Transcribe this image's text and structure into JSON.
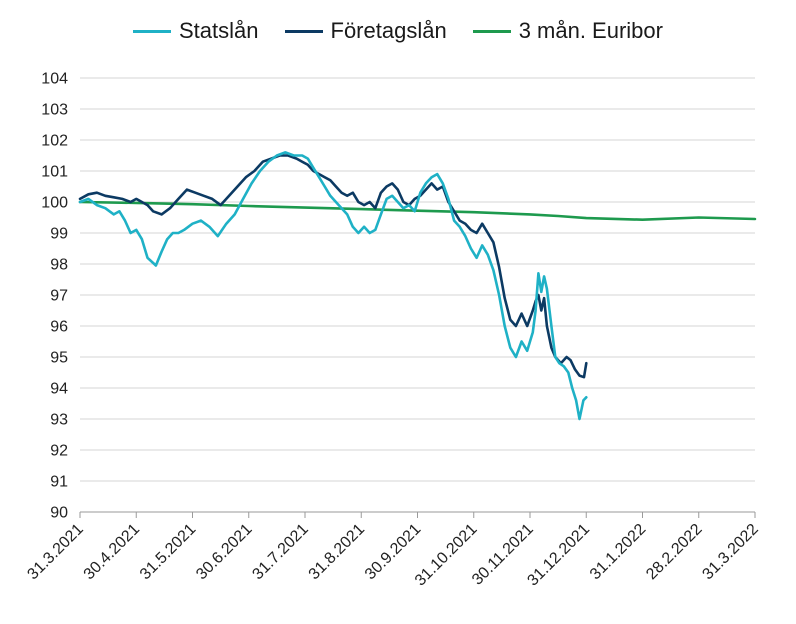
{
  "chart_data": {
    "type": "line",
    "x": [
      "31.3.2021",
      "30.4.2021",
      "31.5.2021",
      "30.6.2021",
      "31.7.2021",
      "31.8.2021",
      "30.9.2021",
      "31.10.2021",
      "30.11.2021",
      "31.12.2021",
      "31.1.2022",
      "28.2.2022",
      "31.3.2022"
    ],
    "ylim": [
      90,
      104
    ],
    "yticks": [
      "90",
      "91",
      "92",
      "93",
      "94",
      "95",
      "96",
      "97",
      "98",
      "99",
      "100",
      "101",
      "102",
      "103",
      "104"
    ],
    "grid": true,
    "legend": "top-center",
    "series": [
      {
        "name": "Statslån",
        "color": "#1fb1c6",
        "points": [
          [
            0,
            100.0
          ],
          [
            0.15,
            100.1
          ],
          [
            0.3,
            99.9
          ],
          [
            0.45,
            99.8
          ],
          [
            0.6,
            99.6
          ],
          [
            0.7,
            99.7
          ],
          [
            0.8,
            99.4
          ],
          [
            0.9,
            99.0
          ],
          [
            1.0,
            99.1
          ],
          [
            1.1,
            98.8
          ],
          [
            1.2,
            98.2
          ],
          [
            1.35,
            97.95
          ],
          [
            1.45,
            98.4
          ],
          [
            1.55,
            98.8
          ],
          [
            1.65,
            99.0
          ],
          [
            1.75,
            99.0
          ],
          [
            1.85,
            99.1
          ],
          [
            2.0,
            99.3
          ],
          [
            2.15,
            99.4
          ],
          [
            2.3,
            99.2
          ],
          [
            2.45,
            98.9
          ],
          [
            2.6,
            99.3
          ],
          [
            2.75,
            99.6
          ],
          [
            2.9,
            100.1
          ],
          [
            3.05,
            100.6
          ],
          [
            3.2,
            101.0
          ],
          [
            3.35,
            101.3
          ],
          [
            3.5,
            101.5
          ],
          [
            3.65,
            101.6
          ],
          [
            3.8,
            101.5
          ],
          [
            3.95,
            101.5
          ],
          [
            4.05,
            101.4
          ],
          [
            4.15,
            101.1
          ],
          [
            4.25,
            100.8
          ],
          [
            4.35,
            100.5
          ],
          [
            4.45,
            100.2
          ],
          [
            4.55,
            100.0
          ],
          [
            4.65,
            99.8
          ],
          [
            4.75,
            99.6
          ],
          [
            4.85,
            99.2
          ],
          [
            4.95,
            99.0
          ],
          [
            5.05,
            99.2
          ],
          [
            5.15,
            99.0
          ],
          [
            5.25,
            99.1
          ],
          [
            5.35,
            99.6
          ],
          [
            5.45,
            100.1
          ],
          [
            5.55,
            100.2
          ],
          [
            5.65,
            100.0
          ],
          [
            5.75,
            99.8
          ],
          [
            5.85,
            99.9
          ],
          [
            5.95,
            99.7
          ],
          [
            6.05,
            100.3
          ],
          [
            6.15,
            100.6
          ],
          [
            6.25,
            100.8
          ],
          [
            6.35,
            100.9
          ],
          [
            6.45,
            100.6
          ],
          [
            6.55,
            100.1
          ],
          [
            6.65,
            99.4
          ],
          [
            6.75,
            99.2
          ],
          [
            6.85,
            98.9
          ],
          [
            6.95,
            98.5
          ],
          [
            7.05,
            98.2
          ],
          [
            7.15,
            98.6
          ],
          [
            7.25,
            98.3
          ],
          [
            7.35,
            97.8
          ],
          [
            7.45,
            97.0
          ],
          [
            7.55,
            96.0
          ],
          [
            7.65,
            95.3
          ],
          [
            7.75,
            95.0
          ],
          [
            7.85,
            95.5
          ],
          [
            7.95,
            95.2
          ],
          [
            8.05,
            95.8
          ],
          [
            8.1,
            96.5
          ],
          [
            8.15,
            97.7
          ],
          [
            8.2,
            97.1
          ],
          [
            8.25,
            97.6
          ],
          [
            8.3,
            97.2
          ],
          [
            8.38,
            96.0
          ],
          [
            8.45,
            95.0
          ],
          [
            8.52,
            94.8
          ],
          [
            8.6,
            94.7
          ],
          [
            8.68,
            94.5
          ],
          [
            8.75,
            94.0
          ],
          [
            8.82,
            93.6
          ],
          [
            8.88,
            93.0
          ],
          [
            8.95,
            93.6
          ],
          [
            9.0,
            93.7
          ]
        ]
      },
      {
        "name": "Företagslån",
        "color": "#0c3a63",
        "points": [
          [
            0,
            100.1
          ],
          [
            0.15,
            100.25
          ],
          [
            0.3,
            100.3
          ],
          [
            0.45,
            100.2
          ],
          [
            0.6,
            100.15
          ],
          [
            0.75,
            100.1
          ],
          [
            0.9,
            100.0
          ],
          [
            1.0,
            100.1
          ],
          [
            1.1,
            100.0
          ],
          [
            1.2,
            99.9
          ],
          [
            1.3,
            99.7
          ],
          [
            1.45,
            99.6
          ],
          [
            1.6,
            99.8
          ],
          [
            1.75,
            100.1
          ],
          [
            1.9,
            100.4
          ],
          [
            2.05,
            100.3
          ],
          [
            2.2,
            100.2
          ],
          [
            2.35,
            100.1
          ],
          [
            2.5,
            99.9
          ],
          [
            2.65,
            100.2
          ],
          [
            2.8,
            100.5
          ],
          [
            2.95,
            100.8
          ],
          [
            3.1,
            101.0
          ],
          [
            3.25,
            101.3
          ],
          [
            3.4,
            101.4
          ],
          [
            3.55,
            101.5
          ],
          [
            3.7,
            101.5
          ],
          [
            3.85,
            101.4
          ],
          [
            3.95,
            101.3
          ],
          [
            4.05,
            101.2
          ],
          [
            4.15,
            101.0
          ],
          [
            4.25,
            100.9
          ],
          [
            4.35,
            100.8
          ],
          [
            4.45,
            100.7
          ],
          [
            4.55,
            100.5
          ],
          [
            4.65,
            100.3
          ],
          [
            4.75,
            100.2
          ],
          [
            4.85,
            100.3
          ],
          [
            4.95,
            100.0
          ],
          [
            5.05,
            99.9
          ],
          [
            5.15,
            100.0
          ],
          [
            5.25,
            99.8
          ],
          [
            5.35,
            100.3
          ],
          [
            5.45,
            100.5
          ],
          [
            5.55,
            100.6
          ],
          [
            5.65,
            100.4
          ],
          [
            5.75,
            100.0
          ],
          [
            5.85,
            99.9
          ],
          [
            5.95,
            100.1
          ],
          [
            6.05,
            100.2
          ],
          [
            6.15,
            100.4
          ],
          [
            6.25,
            100.6
          ],
          [
            6.35,
            100.4
          ],
          [
            6.45,
            100.5
          ],
          [
            6.55,
            100.0
          ],
          [
            6.65,
            99.7
          ],
          [
            6.75,
            99.4
          ],
          [
            6.85,
            99.3
          ],
          [
            6.95,
            99.1
          ],
          [
            7.05,
            99.0
          ],
          [
            7.15,
            99.3
          ],
          [
            7.25,
            99.0
          ],
          [
            7.35,
            98.7
          ],
          [
            7.45,
            97.9
          ],
          [
            7.55,
            96.9
          ],
          [
            7.65,
            96.2
          ],
          [
            7.75,
            96.0
          ],
          [
            7.85,
            96.4
          ],
          [
            7.95,
            96.0
          ],
          [
            8.05,
            96.5
          ],
          [
            8.1,
            96.8
          ],
          [
            8.15,
            97.0
          ],
          [
            8.2,
            96.5
          ],
          [
            8.25,
            96.9
          ],
          [
            8.3,
            96.0
          ],
          [
            8.38,
            95.3
          ],
          [
            8.45,
            95.0
          ],
          [
            8.55,
            94.8
          ],
          [
            8.65,
            95.0
          ],
          [
            8.72,
            94.9
          ],
          [
            8.8,
            94.6
          ],
          [
            8.88,
            94.4
          ],
          [
            8.96,
            94.35
          ],
          [
            9.0,
            94.8
          ]
        ]
      },
      {
        "name": "3 mån. Euribor",
        "color": "#1e9a4e",
        "points": [
          [
            0,
            100.0
          ],
          [
            1,
            99.97
          ],
          [
            2,
            99.93
          ],
          [
            3,
            99.87
          ],
          [
            4,
            99.82
          ],
          [
            5,
            99.77
          ],
          [
            6,
            99.72
          ],
          [
            7,
            99.67
          ],
          [
            8,
            99.6
          ],
          [
            8.5,
            99.55
          ],
          [
            9,
            99.48
          ],
          [
            10,
            99.43
          ],
          [
            11,
            99.5
          ],
          [
            12,
            99.45
          ]
        ]
      }
    ]
  }
}
